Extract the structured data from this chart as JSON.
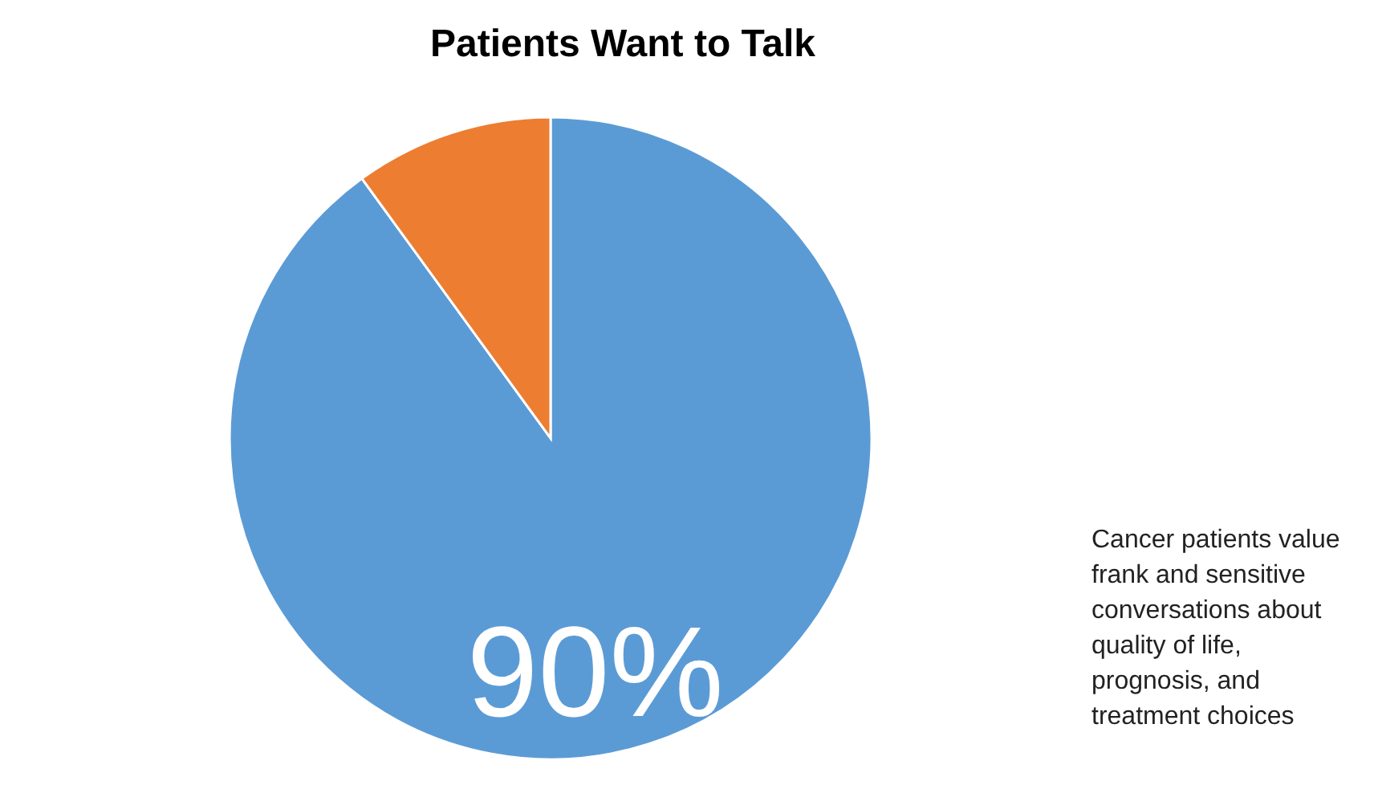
{
  "chart_data": {
    "type": "pie",
    "title": "Patients Want to Talk",
    "categories": [
      null,
      null
    ],
    "values": [
      90,
      10
    ],
    "colors": [
      "#5b9bd5",
      "#ed7d31"
    ],
    "value_labels": [
      "90%",
      null
    ],
    "annotations": [
      "Cancer patients value frank and sensitive conversations about quality of life, prognosis, and treatment choices"
    ]
  }
}
